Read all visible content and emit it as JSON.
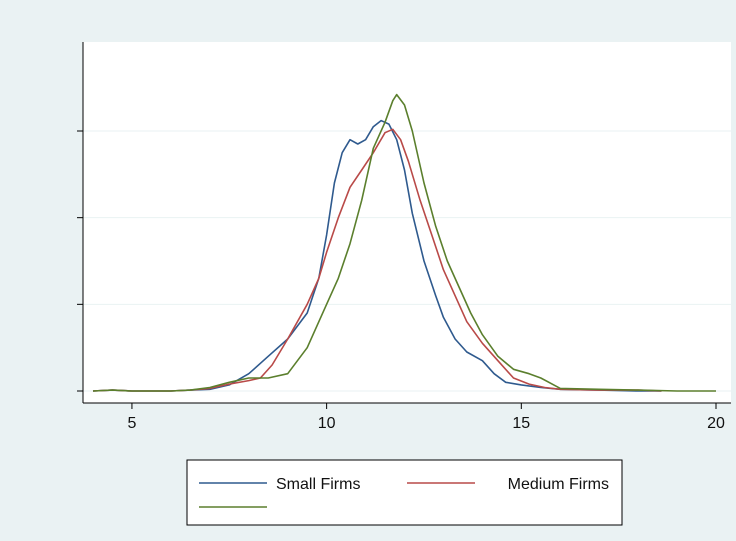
{
  "chart_data": {
    "type": "line",
    "title": "",
    "xlabel": "",
    "ylabel": "",
    "xlim": [
      4,
      20
    ],
    "xticks": [
      5,
      10,
      15,
      20
    ],
    "xtick_labels": [
      "5",
      "10",
      "15",
      "20"
    ],
    "ylim": [
      0,
      0.31
    ],
    "yticks": [
      0,
      0.1,
      0.2,
      0.3
    ],
    "ytick_labels_visible": false,
    "grid": "horizontal",
    "legend_position": "bottom",
    "series": [
      {
        "name": "Small Firms",
        "color": "#2f5a8e",
        "points": [
          [
            4.0,
            0.0
          ],
          [
            4.5,
            0.001
          ],
          [
            5,
            0.0
          ],
          [
            5.5,
            0.0
          ],
          [
            6,
            0.0
          ],
          [
            6.5,
            0.001
          ],
          [
            7,
            0.002
          ],
          [
            7.5,
            0.007
          ],
          [
            8,
            0.02
          ],
          [
            8.5,
            0.04
          ],
          [
            9,
            0.06
          ],
          [
            9.5,
            0.09
          ],
          [
            9.8,
            0.13
          ],
          [
            10.0,
            0.18
          ],
          [
            10.2,
            0.24
          ],
          [
            10.4,
            0.275
          ],
          [
            10.6,
            0.29
          ],
          [
            10.8,
            0.285
          ],
          [
            11.0,
            0.29
          ],
          [
            11.2,
            0.305
          ],
          [
            11.4,
            0.312
          ],
          [
            11.6,
            0.308
          ],
          [
            11.8,
            0.29
          ],
          [
            12.0,
            0.255
          ],
          [
            12.2,
            0.205
          ],
          [
            12.5,
            0.15
          ],
          [
            12.8,
            0.11
          ],
          [
            13.0,
            0.085
          ],
          [
            13.3,
            0.06
          ],
          [
            13.6,
            0.045
          ],
          [
            14.0,
            0.035
          ],
          [
            14.3,
            0.02
          ],
          [
            14.6,
            0.01
          ],
          [
            15.0,
            0.007
          ],
          [
            15.5,
            0.004
          ],
          [
            16,
            0.002
          ],
          [
            17,
            0.001
          ],
          [
            18,
            0.0
          ],
          [
            18.6,
            0.0
          ]
        ]
      },
      {
        "name": "Medium Firms",
        "color": "#b94a48",
        "points": [
          [
            4.0,
            0.0
          ],
          [
            4.5,
            0.001
          ],
          [
            5,
            0.0
          ],
          [
            5.5,
            0.0
          ],
          [
            6,
            0.0
          ],
          [
            6.5,
            0.001
          ],
          [
            7,
            0.003
          ],
          [
            7.5,
            0.008
          ],
          [
            8,
            0.012
          ],
          [
            8.3,
            0.015
          ],
          [
            8.6,
            0.03
          ],
          [
            9.0,
            0.06
          ],
          [
            9.5,
            0.1
          ],
          [
            9.8,
            0.13
          ],
          [
            10.0,
            0.16
          ],
          [
            10.3,
            0.2
          ],
          [
            10.6,
            0.235
          ],
          [
            10.9,
            0.255
          ],
          [
            11.2,
            0.275
          ],
          [
            11.5,
            0.298
          ],
          [
            11.7,
            0.302
          ],
          [
            11.9,
            0.29
          ],
          [
            12.1,
            0.265
          ],
          [
            12.4,
            0.22
          ],
          [
            12.7,
            0.18
          ],
          [
            13.0,
            0.14
          ],
          [
            13.3,
            0.11
          ],
          [
            13.6,
            0.08
          ],
          [
            14.0,
            0.055
          ],
          [
            14.4,
            0.035
          ],
          [
            14.8,
            0.015
          ],
          [
            15.2,
            0.008
          ],
          [
            15.6,
            0.004
          ],
          [
            16,
            0.002
          ],
          [
            17,
            0.001
          ],
          [
            18,
            0.001
          ],
          [
            18.6,
            0.0
          ]
        ]
      },
      {
        "name": "",
        "color": "#5b7f2d",
        "points": [
          [
            4.0,
            0.0
          ],
          [
            4.5,
            0.001
          ],
          [
            5,
            0.0
          ],
          [
            5.5,
            0.0
          ],
          [
            6,
            0.0
          ],
          [
            6.5,
            0.001
          ],
          [
            7,
            0.004
          ],
          [
            7.5,
            0.01
          ],
          [
            8,
            0.015
          ],
          [
            8.5,
            0.015
          ],
          [
            9.0,
            0.02
          ],
          [
            9.5,
            0.05
          ],
          [
            10.0,
            0.1
          ],
          [
            10.3,
            0.13
          ],
          [
            10.6,
            0.17
          ],
          [
            10.9,
            0.22
          ],
          [
            11.2,
            0.28
          ],
          [
            11.5,
            0.31
          ],
          [
            11.7,
            0.335
          ],
          [
            11.8,
            0.342
          ],
          [
            12.0,
            0.33
          ],
          [
            12.2,
            0.3
          ],
          [
            12.5,
            0.24
          ],
          [
            12.8,
            0.19
          ],
          [
            13.1,
            0.15
          ],
          [
            13.4,
            0.12
          ],
          [
            13.7,
            0.09
          ],
          [
            14.0,
            0.065
          ],
          [
            14.4,
            0.04
          ],
          [
            14.8,
            0.025
          ],
          [
            15.2,
            0.02
          ],
          [
            15.5,
            0.015
          ],
          [
            16,
            0.003
          ],
          [
            17,
            0.002
          ],
          [
            18,
            0.001
          ],
          [
            19,
            0.0
          ],
          [
            20,
            0.0
          ]
        ]
      }
    ]
  }
}
